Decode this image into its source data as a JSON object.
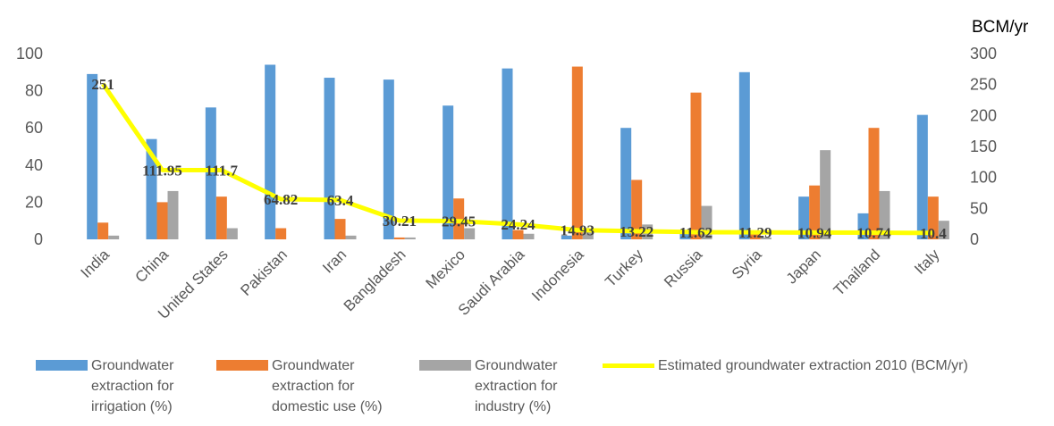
{
  "chart_data": {
    "type": "bar",
    "categories": [
      "India",
      "China",
      "United States",
      "Pakistan",
      "Iran",
      "Bangladesh",
      "Mexico",
      "Saudi Arabia",
      "Indonesia",
      "Turkey",
      "Russia",
      "Syria",
      "Japan",
      "Thailand",
      "Italy"
    ],
    "series": [
      {
        "name": "Groundwater extraction for irrigation (%)",
        "axis": "left",
        "kind": "bar",
        "color": "#5B9BD5",
        "values": [
          89,
          54,
          71,
          94,
          87,
          86,
          72,
          92,
          2,
          60,
          3,
          90,
          23,
          14,
          67
        ]
      },
      {
        "name": "Groundwater extraction for domestic use (%)",
        "axis": "left",
        "kind": "bar",
        "color": "#ED7D31",
        "values": [
          9,
          20,
          23,
          6,
          11,
          1,
          22,
          5,
          93,
          32,
          79,
          3,
          29,
          60,
          23
        ]
      },
      {
        "name": "Groundwater extraction for industry (%)",
        "axis": "left",
        "kind": "bar",
        "color": "#A5A5A5",
        "values": [
          2,
          26,
          6,
          0,
          2,
          1,
          6,
          3,
          5,
          8,
          18,
          1,
          48,
          26,
          10
        ]
      },
      {
        "name": "Estimated groundwater extraction 2010 (BCM/yr)",
        "axis": "right",
        "kind": "line",
        "color": "#FFFF00",
        "values": [
          251,
          111.95,
          111.7,
          64.82,
          63.4,
          30.21,
          29.45,
          24.24,
          14.93,
          13.22,
          11.62,
          11.29,
          10.94,
          10.74,
          10.4
        ],
        "labels": [
          "251",
          "111.95",
          "111.7",
          "64.82",
          "63.4",
          "30.21",
          "29.45",
          "24.24",
          "14.93",
          "13.22",
          "11.62",
          "11.29",
          "10.94",
          "10.74",
          "10.4"
        ]
      }
    ],
    "y_left": {
      "ylim": [
        0,
        100
      ],
      "ticks": [
        "0",
        "20",
        "40",
        "60",
        "80",
        "100"
      ]
    },
    "y_right": {
      "ylim": [
        0,
        300
      ],
      "ticks": [
        "0",
        "50",
        "100",
        "150",
        "200",
        "250",
        "300"
      ],
      "unit_label": "BCM/yr"
    },
    "grid": false,
    "legend_position": "bottom"
  },
  "legend": [
    {
      "text": "Groundwater\nextraction for\nirrigation (%)",
      "color": "#5B9BD5",
      "kind": "bar"
    },
    {
      "text": "Groundwater\nextraction for\ndomestic use (%)",
      "color": "#ED7D31",
      "kind": "bar"
    },
    {
      "text": "Groundwater\nextraction for\nindustry (%)",
      "color": "#A5A5A5",
      "kind": "bar"
    },
    {
      "text": "Estimated groundwater extraction 2010 (BCM/yr)",
      "color": "#FFFF00",
      "kind": "line"
    }
  ]
}
